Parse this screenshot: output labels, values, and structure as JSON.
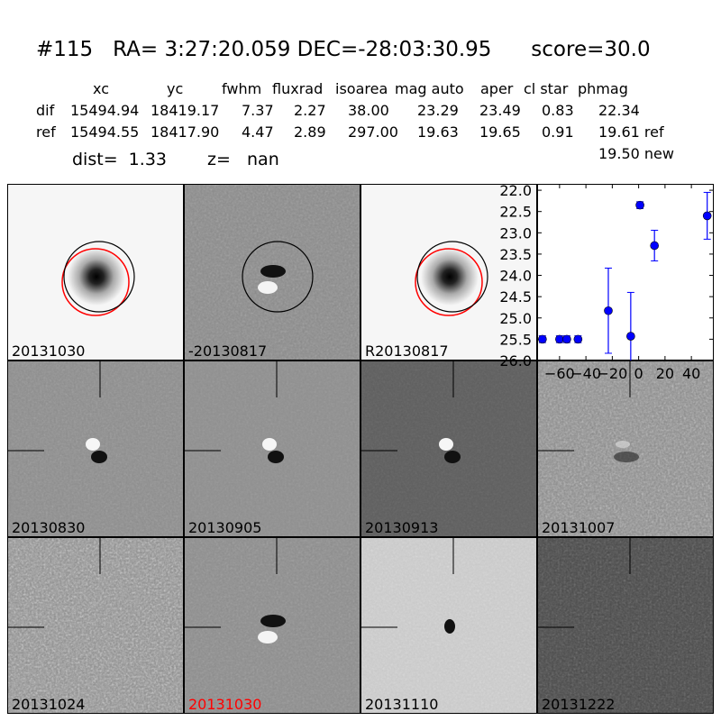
{
  "title": {
    "id": "#115",
    "ra": "RA= 3:27:20.059",
    "dec": "DEC=-28:03:30.95",
    "score": "score=30.0"
  },
  "table": {
    "headers": [
      "xc",
      "yc",
      "fwhm",
      "fluxrad",
      "isoarea",
      "mag auto",
      "aper",
      "cl star",
      "phmag"
    ],
    "rows": [
      {
        "label": "dif",
        "values": [
          "15494.94",
          "18419.17",
          "7.37",
          "2.27",
          "38.00",
          "23.29",
          "23.49",
          "0.83",
          "22.34"
        ]
      },
      {
        "label": "ref",
        "values": [
          "15494.55",
          "18417.90",
          "4.47",
          "2.89",
          "297.00",
          "19.63",
          "19.65",
          "0.91",
          "19.61 ref"
        ]
      }
    ],
    "extra_phmag": "19.50 new",
    "dist": "dist=  1.33",
    "z": "z=   nan"
  },
  "stamps": [
    {
      "label": "20131030",
      "bg": "#f6f6f6",
      "noise": 0.05,
      "type": "star",
      "circles": true,
      "label_color": "#000000"
    },
    {
      "label": "-20130817",
      "bg": "#8a8a8a",
      "noise": 0.35,
      "type": "dipole",
      "circles": "black",
      "label_color": "#000000"
    },
    {
      "label": "R20130817",
      "bg": "#f6f6f6",
      "noise": 0.05,
      "type": "star",
      "circles": true,
      "label_color": "#000000"
    },
    {
      "label": "20130830",
      "bg": "#8c8c8c",
      "noise": 0.3,
      "type": "dipole2",
      "cross": true,
      "label_color": "#000000"
    },
    {
      "label": "20130905",
      "bg": "#8e8e8e",
      "noise": 0.2,
      "type": "dipole2",
      "cross": true,
      "label_color": "#000000"
    },
    {
      "label": "20130913",
      "bg": "#5e5e5e",
      "noise": 0.25,
      "type": "dipole2",
      "cross": true,
      "label_color": "#000000"
    },
    {
      "label": "20131007",
      "bg": "#8a8a8a",
      "noise": 0.7,
      "type": "faint",
      "cross": true,
      "label_color": "#000000"
    },
    {
      "label": "20131024",
      "bg": "#8c8c8c",
      "noise": 0.85,
      "type": "none",
      "cross": true,
      "label_color": "#000000"
    },
    {
      "label": "20131030",
      "bg": "#8c8c8c",
      "noise": 0.3,
      "type": "dipole",
      "cross": true,
      "label_color": "#ff0000"
    },
    {
      "label": "20131110",
      "bg": "#c8c8c8",
      "noise": 0.45,
      "type": "small",
      "cross": true,
      "label_color": "#000000"
    },
    {
      "label": "20131222",
      "bg": "#4a4a4a",
      "noise": 0.85,
      "type": "none",
      "cross": true,
      "label_color": "#000000"
    }
  ],
  "chart_data": {
    "type": "scatter",
    "x": [
      -73,
      -60,
      -54.5,
      -46,
      -23,
      -6,
      1,
      12,
      52
    ],
    "y": [
      25.5,
      25.5,
      25.5,
      25.5,
      24.83,
      25.43,
      22.35,
      23.3,
      22.6
    ],
    "yerr": [
      0.08,
      0.08,
      0.08,
      0.08,
      1.0,
      1.03,
      0.08,
      0.36,
      0.55
    ],
    "xlim": [
      -77,
      57
    ],
    "ylim": [
      26.0,
      21.85
    ],
    "y_inverted": true,
    "xticks": [
      -60,
      -40,
      -20,
      0,
      20,
      40
    ],
    "yticks": [
      "22.0",
      "22.5",
      "23.0",
      "23.5",
      "24.0",
      "24.5",
      "25.0",
      "25.5",
      "26.0"
    ],
    "color": "#0000ff",
    "grid": false
  }
}
